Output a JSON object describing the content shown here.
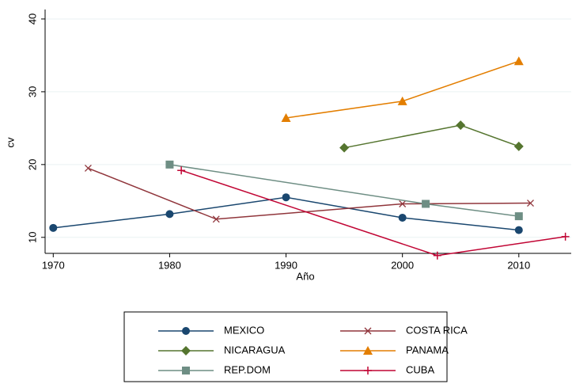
{
  "chart_data": {
    "type": "line",
    "x_label": "Año",
    "y_label": "cv",
    "xlim": [
      1969.3,
      2014.5
    ],
    "xticks": [
      1970,
      1980,
      1990,
      2000,
      2010
    ],
    "ylim": [
      7.8,
      41.3
    ],
    "yticks": [
      10,
      20,
      30,
      40
    ],
    "grid": true,
    "legend": "bottom",
    "series": [
      {
        "name": "MEXICO",
        "color": "#1a476f",
        "marker": "circle",
        "x": [
          1970,
          1980,
          1990,
          2000,
          2010
        ],
        "values": [
          11.3,
          13.2,
          15.5,
          12.7,
          11.0
        ]
      },
      {
        "name": "COSTA RICA",
        "color": "#90353b",
        "marker": "x",
        "x": [
          1973,
          1984,
          2000,
          2011
        ],
        "values": [
          19.5,
          12.5,
          14.6,
          14.7
        ]
      },
      {
        "name": "NICARAGUA",
        "color": "#55752f",
        "marker": "diamond",
        "x": [
          1995,
          2005,
          2010
        ],
        "values": [
          22.3,
          25.4,
          22.5
        ]
      },
      {
        "name": "PANAMA",
        "color": "#e37e00",
        "marker": "triangle",
        "x": [
          1990,
          2000,
          2010
        ],
        "values": [
          26.4,
          28.7,
          34.2
        ]
      },
      {
        "name": "REP.DOM",
        "color": "#6e8e84",
        "marker": "square",
        "x": [
          1980,
          2002,
          2010
        ],
        "values": [
          20.0,
          14.6,
          12.9
        ]
      },
      {
        "name": "CUBA",
        "color": "#c10534",
        "marker": "plus",
        "x": [
          1981,
          2003,
          2014
        ],
        "values": [
          19.2,
          7.5,
          10.1
        ]
      }
    ]
  }
}
